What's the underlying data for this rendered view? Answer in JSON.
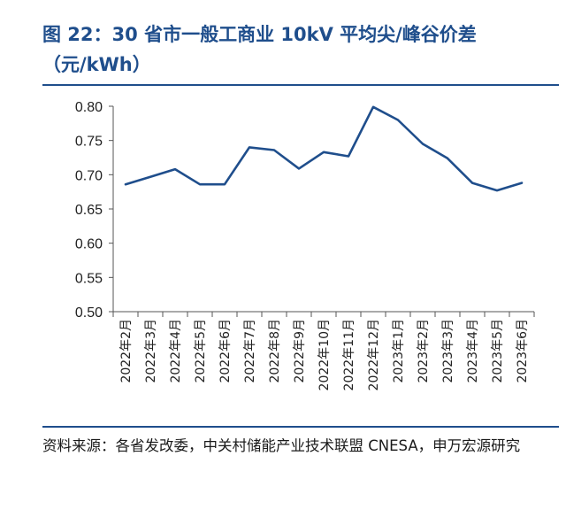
{
  "figure": {
    "title": "图 22：30 省市一般工商业 10kV 平均尖/峰谷价差（元/kWh）",
    "source": "资料来源：各省发改委，中关村储能产业技术联盟 CNESA，申万宏源研究"
  },
  "chart_data": {
    "type": "line",
    "title": "图 22：30 省市一般工商业 10kV 平均尖/峰谷价差（元/kWh）",
    "xlabel": "",
    "ylabel": "",
    "categories": [
      "2022年2月",
      "2022年3月",
      "2022年4月",
      "2022年5月",
      "2022年6月",
      "2022年7月",
      "2022年8月",
      "2022年9月",
      "2022年10月",
      "2022年11月",
      "2022年12月",
      "2023年1月",
      "2023年2月",
      "2023年3月",
      "2023年4月",
      "2023年5月",
      "2023年6月"
    ],
    "series": [
      {
        "values": [
          0.686,
          0.697,
          0.708,
          0.686,
          0.686,
          0.74,
          0.736,
          0.709,
          0.733,
          0.727,
          0.799,
          0.78,
          0.745,
          0.724,
          0.688,
          0.677,
          0.688
        ]
      }
    ],
    "yticks": [
      "0.50",
      "0.55",
      "0.60",
      "0.65",
      "0.70",
      "0.75",
      "0.80"
    ],
    "ylim": [
      0.5,
      0.8
    ],
    "grid": false,
    "legend": "none",
    "line_color": "#1F4E8C"
  }
}
